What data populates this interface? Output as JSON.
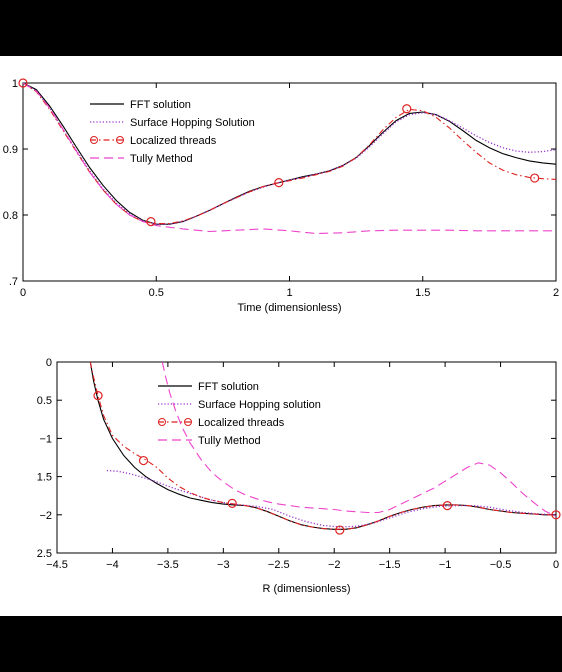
{
  "chart_data": [
    {
      "type": "line",
      "xlabel": "Time (dimensionless)",
      "ylabel": "",
      "xlim": [
        0,
        2
      ],
      "ylim": [
        0.7,
        1.0
      ],
      "xticks": [
        0,
        0.5,
        1,
        1.5,
        2
      ],
      "xtick_labels": [
        "0",
        "0.5",
        "1",
        "1.5",
        "2"
      ],
      "yticks": [
        0.7,
        0.8,
        0.9,
        1.0
      ],
      "ytick_labels": [
        ".7",
        "0.8",
        "0.9",
        "1"
      ],
      "grid": false,
      "legend_position": "top-center",
      "series": [
        {
          "name": "FFT solution",
          "color": "#000000",
          "style": "solid",
          "marker": "none",
          "x": [
            0,
            0.05,
            0.1,
            0.15,
            0.2,
            0.25,
            0.3,
            0.35,
            0.4,
            0.45,
            0.5,
            0.55,
            0.6,
            0.65,
            0.7,
            0.75,
            0.8,
            0.85,
            0.9,
            0.95,
            1.0,
            1.05,
            1.1,
            1.15,
            1.2,
            1.25,
            1.3,
            1.35,
            1.4,
            1.45,
            1.5,
            1.55,
            1.6,
            1.65,
            1.7,
            1.75,
            1.8,
            1.85,
            1.9,
            1.95,
            2.0
          ],
          "y": [
            1.0,
            0.99,
            0.965,
            0.935,
            0.903,
            0.872,
            0.845,
            0.822,
            0.804,
            0.792,
            0.786,
            0.786,
            0.79,
            0.798,
            0.807,
            0.817,
            0.827,
            0.836,
            0.843,
            0.848,
            0.853,
            0.858,
            0.862,
            0.867,
            0.875,
            0.887,
            0.905,
            0.925,
            0.943,
            0.954,
            0.956,
            0.952,
            0.942,
            0.928,
            0.913,
            0.902,
            0.893,
            0.887,
            0.882,
            0.879,
            0.877
          ]
        },
        {
          "name": "Surface Hopping Solution",
          "color": "#9933cc",
          "style": "dotted",
          "marker": "none",
          "x": [
            0,
            0.05,
            0.1,
            0.15,
            0.2,
            0.25,
            0.3,
            0.35,
            0.4,
            0.45,
            0.5,
            0.55,
            0.6,
            0.65,
            0.7,
            0.75,
            0.8,
            0.85,
            0.9,
            0.95,
            1.0,
            1.05,
            1.1,
            1.15,
            1.2,
            1.25,
            1.3,
            1.35,
            1.4,
            1.45,
            1.5,
            1.55,
            1.6,
            1.65,
            1.7,
            1.75,
            1.8,
            1.85,
            1.9,
            1.95,
            2.0
          ],
          "y": [
            1.0,
            0.988,
            0.962,
            0.93,
            0.898,
            0.867,
            0.84,
            0.818,
            0.802,
            0.791,
            0.786,
            0.786,
            0.79,
            0.798,
            0.807,
            0.817,
            0.826,
            0.835,
            0.842,
            0.848,
            0.853,
            0.857,
            0.862,
            0.867,
            0.875,
            0.886,
            0.903,
            0.923,
            0.941,
            0.952,
            0.955,
            0.952,
            0.943,
            0.932,
            0.92,
            0.91,
            0.902,
            0.897,
            0.895,
            0.896,
            0.899
          ]
        },
        {
          "name": "Localized threads",
          "color": "#dd2222",
          "style": "dashdot",
          "marker": "circle",
          "x": [
            0,
            0.05,
            0.1,
            0.15,
            0.2,
            0.25,
            0.3,
            0.35,
            0.4,
            0.45,
            0.5,
            0.55,
            0.6,
            0.65,
            0.7,
            0.75,
            0.8,
            0.85,
            0.9,
            0.95,
            1.0,
            1.05,
            1.1,
            1.15,
            1.2,
            1.25,
            1.3,
            1.35,
            1.4,
            1.45,
            1.5,
            1.55,
            1.6,
            1.65,
            1.7,
            1.75,
            1.8,
            1.85,
            1.9,
            1.95,
            2.0
          ],
          "y": [
            1.0,
            0.987,
            0.96,
            0.928,
            0.896,
            0.865,
            0.838,
            0.816,
            0.8,
            0.79,
            0.787,
            0.787,
            0.791,
            0.798,
            0.807,
            0.817,
            0.826,
            0.835,
            0.843,
            0.848,
            0.852,
            0.856,
            0.861,
            0.866,
            0.874,
            0.887,
            0.906,
            0.929,
            0.948,
            0.96,
            0.958,
            0.948,
            0.932,
            0.913,
            0.895,
            0.879,
            0.868,
            0.861,
            0.857,
            0.855,
            0.854
          ],
          "marker_x": [
            0,
            0.48,
            0.96,
            1.44,
            1.92
          ],
          "marker_y": [
            1.0,
            0.79,
            0.849,
            0.961,
            0.856
          ]
        },
        {
          "name": "Tully Method",
          "color": "#ee44cc",
          "style": "dashed",
          "marker": "none",
          "x": [
            0,
            0.05,
            0.1,
            0.15,
            0.2,
            0.25,
            0.3,
            0.35,
            0.4,
            0.45,
            0.5,
            0.6,
            0.7,
            0.8,
            0.9,
            1.0,
            1.1,
            1.2,
            1.3,
            1.4,
            1.5,
            1.6,
            1.7,
            1.8,
            1.9,
            2.0
          ],
          "y": [
            1.0,
            0.988,
            0.962,
            0.93,
            0.897,
            0.865,
            0.838,
            0.816,
            0.8,
            0.79,
            0.784,
            0.779,
            0.775,
            0.777,
            0.779,
            0.776,
            0.772,
            0.773,
            0.776,
            0.777,
            0.777,
            0.777,
            0.776,
            0.776,
            0.776,
            0.776
          ]
        }
      ]
    },
    {
      "type": "line",
      "xlabel": "R (dimensionless)",
      "ylabel": "",
      "xlim": [
        -4.5,
        0
      ],
      "ylim": [
        -2.5,
        0
      ],
      "xticks": [
        -4.5,
        -4,
        -3.5,
        -3,
        -2.5,
        -2,
        -1.5,
        -1,
        -0.5,
        0
      ],
      "xtick_labels": [
        "−4.5",
        "−4",
        "−3.5",
        "−3",
        "−2.5",
        "−2",
        "−1.5",
        "−1",
        "−0.5",
        "0"
      ],
      "yticks": [
        0,
        -0.5,
        -1,
        -1.5,
        -2,
        -2.5
      ],
      "ytick_labels": [
        "0",
        "0.5",
        "−1",
        "1.5",
        "−2",
        "2.5"
      ],
      "grid": false,
      "legend_position": "top-center",
      "series": [
        {
          "name": "FFT solution",
          "color": "#000000",
          "style": "solid",
          "marker": "none",
          "x": [
            -4.2,
            -4.17,
            -4.13,
            -4.08,
            -4.0,
            -3.9,
            -3.8,
            -3.7,
            -3.6,
            -3.5,
            -3.4,
            -3.3,
            -3.2,
            -3.1,
            -3.0,
            -2.9,
            -2.8,
            -2.7,
            -2.6,
            -2.5,
            -2.4,
            -2.3,
            -2.2,
            -2.1,
            -2.0,
            -1.9,
            -1.8,
            -1.7,
            -1.6,
            -1.5,
            -1.4,
            -1.3,
            -1.2,
            -1.1,
            -1.0,
            -0.9,
            -0.8,
            -0.7,
            -0.6,
            -0.5,
            -0.4,
            -0.3,
            -0.2,
            -0.1,
            0.0
          ],
          "y": [
            0.0,
            -0.25,
            -0.5,
            -0.75,
            -1.0,
            -1.22,
            -1.38,
            -1.5,
            -1.59,
            -1.67,
            -1.73,
            -1.78,
            -1.81,
            -1.84,
            -1.86,
            -1.87,
            -1.88,
            -1.91,
            -1.96,
            -2.02,
            -2.08,
            -2.13,
            -2.16,
            -2.18,
            -2.19,
            -2.19,
            -2.17,
            -2.13,
            -2.08,
            -2.02,
            -1.97,
            -1.93,
            -1.9,
            -1.88,
            -1.87,
            -1.87,
            -1.88,
            -1.9,
            -1.93,
            -1.95,
            -1.97,
            -1.98,
            -1.99,
            -2.0,
            -2.0
          ]
        },
        {
          "name": "Surface Hopping solution",
          "color": "#9933cc",
          "style": "dotted",
          "marker": "none",
          "x": [
            -4.05,
            -3.95,
            -3.85,
            -3.75,
            -3.6,
            -3.45,
            -3.3,
            -3.15,
            -3.0,
            -2.85,
            -2.7,
            -2.55,
            -2.4,
            -2.25,
            -2.1,
            -1.95,
            -1.8,
            -1.65,
            -1.5,
            -1.35,
            -1.2,
            -1.05,
            -0.9,
            -0.75,
            -0.6,
            -0.45,
            -0.3,
            -0.15,
            0.0
          ],
          "y": [
            -1.42,
            -1.43,
            -1.46,
            -1.5,
            -1.57,
            -1.65,
            -1.72,
            -1.79,
            -1.84,
            -1.87,
            -1.89,
            -1.93,
            -2.02,
            -2.09,
            -2.14,
            -2.16,
            -2.15,
            -2.11,
            -2.04,
            -1.97,
            -1.92,
            -1.89,
            -1.88,
            -1.88,
            -1.9,
            -1.94,
            -1.97,
            -1.99,
            -2.0
          ]
        },
        {
          "name": "Localized threads",
          "color": "#dd2222",
          "style": "dashdot",
          "marker": "circle",
          "x": [
            -4.2,
            -4.17,
            -4.13,
            -4.08,
            -4.0,
            -3.9,
            -3.8,
            -3.7,
            -3.6,
            -3.5,
            -3.4,
            -3.3,
            -3.2,
            -3.1,
            -3.0,
            -2.9,
            -2.8,
            -2.7,
            -2.6,
            -2.5,
            -2.4,
            -2.3,
            -2.2,
            -2.1,
            -2.0,
            -1.9,
            -1.8,
            -1.7,
            -1.6,
            -1.5,
            -1.4,
            -1.3,
            -1.2,
            -1.1,
            -1.0,
            -0.9,
            -0.8,
            -0.7,
            -0.6,
            -0.5,
            -0.4,
            -0.3,
            -0.2,
            -0.1,
            0.0
          ],
          "y": [
            0.0,
            -0.2,
            -0.44,
            -0.7,
            -0.96,
            -1.1,
            -1.2,
            -1.28,
            -1.38,
            -1.52,
            -1.63,
            -1.71,
            -1.77,
            -1.81,
            -1.84,
            -1.86,
            -1.88,
            -1.91,
            -1.96,
            -2.02,
            -2.08,
            -2.13,
            -2.16,
            -2.18,
            -2.19,
            -2.19,
            -2.17,
            -2.13,
            -2.08,
            -2.02,
            -1.97,
            -1.93,
            -1.9,
            -1.88,
            -1.87,
            -1.87,
            -1.88,
            -1.9,
            -1.93,
            -1.95,
            -1.97,
            -1.98,
            -1.99,
            -2.0,
            -2.0
          ],
          "marker_x": [
            -4.13,
            -3.72,
            -2.92,
            -1.95,
            -0.98,
            0.0
          ],
          "marker_y": [
            -0.44,
            -1.29,
            -1.85,
            -2.2,
            -1.88,
            -2.0
          ]
        },
        {
          "name": "Tully Method",
          "color": "#ee44cc",
          "style": "dashed",
          "marker": "none",
          "x": [
            -3.55,
            -3.52,
            -3.48,
            -3.43,
            -3.37,
            -3.3,
            -3.2,
            -3.1,
            -3.0,
            -2.9,
            -2.8,
            -2.7,
            -2.6,
            -2.5,
            -2.4,
            -2.3,
            -2.2,
            -2.1,
            -2.0,
            -1.9,
            -1.8,
            -1.7,
            -1.6,
            -1.5,
            -1.4,
            -1.3,
            -1.2,
            -1.1,
            -1.0,
            -0.9,
            -0.8,
            -0.7,
            -0.6,
            -0.5,
            -0.4,
            -0.3,
            -0.2,
            -0.1,
            0.0
          ],
          "y": [
            0.0,
            -0.2,
            -0.42,
            -0.64,
            -0.86,
            -1.06,
            -1.28,
            -1.45,
            -1.57,
            -1.67,
            -1.74,
            -1.79,
            -1.83,
            -1.86,
            -1.88,
            -1.9,
            -1.91,
            -1.92,
            -1.93,
            -1.95,
            -1.96,
            -1.97,
            -1.97,
            -1.93,
            -1.86,
            -1.79,
            -1.72,
            -1.65,
            -1.56,
            -1.47,
            -1.38,
            -1.32,
            -1.35,
            -1.45,
            -1.58,
            -1.72,
            -1.84,
            -1.95,
            -2.02
          ]
        }
      ]
    }
  ]
}
